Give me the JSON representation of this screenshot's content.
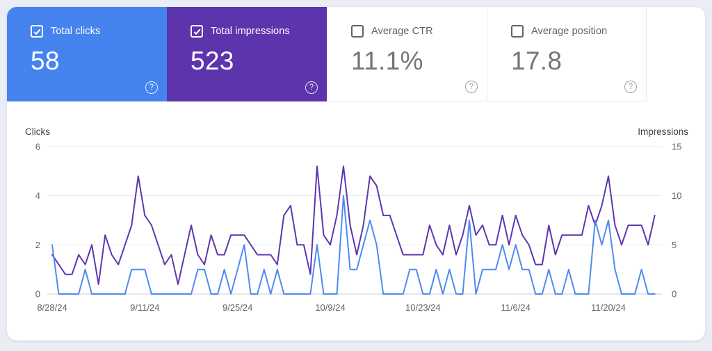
{
  "page": {
    "background_color": "#eaedf4",
    "panel_color": "#ffffff"
  },
  "icons": {
    "help_glyph": "?"
  },
  "metric_cards": [
    {
      "label": "Total clicks",
      "value": "58",
      "checked": true,
      "background": "#4584ee",
      "style": "colored"
    },
    {
      "label": "Total impressions",
      "value": "523",
      "checked": true,
      "background": "#5c34ac",
      "style": "colored"
    },
    {
      "label": "Average CTR",
      "value": "11.1%",
      "checked": false,
      "background": "#ffffff",
      "style": "plain"
    },
    {
      "label": "Average position",
      "value": "17.8",
      "checked": false,
      "background": "#ffffff",
      "style": "plain"
    }
  ],
  "chart_data": {
    "type": "line",
    "grid": true,
    "legend_position": "none",
    "num_points": 92,
    "date_start": "8/28/24",
    "x_tick_labels": [
      "8/28/24",
      "9/11/24",
      "9/25/24",
      "10/9/24",
      "10/23/24",
      "11/6/24",
      "11/20/24"
    ],
    "x_tick_days": [
      0,
      14,
      28,
      42,
      56,
      70,
      84
    ],
    "left_axis": {
      "label": "Clicks",
      "ticks": [
        0,
        2,
        4,
        6
      ],
      "max": 6
    },
    "right_axis": {
      "label": "Impressions",
      "ticks": [
        0,
        5,
        10,
        15
      ],
      "max": 15
    },
    "series": [
      {
        "name": "Clicks",
        "axis": "left",
        "color": "#4d8bf2",
        "values": [
          2,
          0,
          0,
          0,
          0,
          1,
          0,
          0,
          0,
          0,
          0,
          0,
          1,
          1,
          1,
          0,
          0,
          0,
          0,
          0,
          0,
          0,
          1,
          1,
          0,
          0,
          1,
          0,
          1,
          2,
          0,
          0,
          1,
          0,
          1,
          0,
          0,
          0,
          0,
          0,
          2,
          0,
          0,
          0,
          4,
          1,
          1,
          2,
          3,
          2,
          0,
          0,
          0,
          0,
          1,
          1,
          0,
          0,
          1,
          0,
          1,
          0,
          0,
          3,
          0,
          1,
          1,
          1,
          2,
          1,
          2,
          1,
          1,
          0,
          0,
          1,
          0,
          0,
          1,
          0,
          0,
          0,
          3,
          2,
          3,
          1,
          0,
          0,
          0,
          1,
          0,
          0
        ]
      },
      {
        "name": "Impressions",
        "axis": "right",
        "color": "#5e35b1",
        "values": [
          4,
          3,
          2,
          2,
          4,
          3,
          5,
          1,
          6,
          4,
          3,
          5,
          7,
          12,
          8,
          7,
          5,
          3,
          4,
          1,
          4,
          7,
          4,
          3,
          6,
          4,
          4,
          6,
          6,
          6,
          5,
          4,
          4,
          4,
          3,
          8,
          9,
          5,
          5,
          2,
          13,
          6,
          5,
          8,
          13,
          7,
          4,
          7,
          12,
          11,
          8,
          8,
          6,
          4,
          4,
          4,
          4,
          7,
          5,
          4,
          7,
          4,
          6,
          9,
          6,
          7,
          5,
          5,
          8,
          5,
          8,
          6,
          5,
          3,
          3,
          7,
          4,
          6,
          6,
          6,
          6,
          9,
          7,
          9,
          12,
          7,
          5,
          7,
          7,
          7,
          5,
          8
        ]
      }
    ]
  }
}
